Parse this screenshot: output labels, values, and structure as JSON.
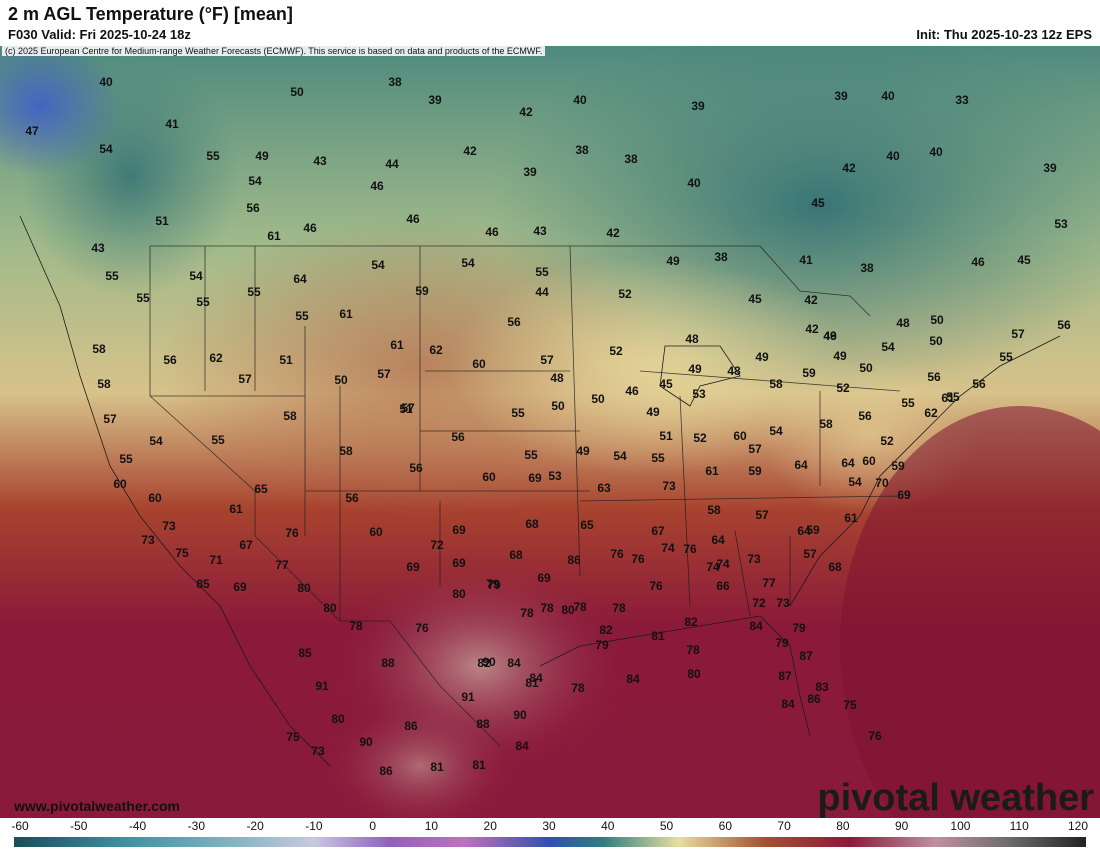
{
  "header": {
    "title": "2 m AGL Temperature (°F) [mean]",
    "valid": "F030 Valid: Fri 2025-10-24 18z",
    "init": "Init: Thu 2025-10-23 12z EPS"
  },
  "map": {
    "copyright": "(c) 2025 European Centre for Medium-range Weather Forecasts (ECMWF). This service is based on data and products of the ECMWF.",
    "site": "www.pivotalweather.com",
    "brand": "pivotal weather",
    "temperature_labels": [
      "40",
      "38",
      "50",
      "39",
      "42",
      "40",
      "39",
      "39",
      "40",
      "33",
      "47",
      "41",
      "54",
      "55",
      "49",
      "43",
      "44",
      "42",
      "39",
      "38",
      "42",
      "40",
      "40",
      "39",
      "54",
      "46",
      "38",
      "40",
      "45",
      "53",
      "56",
      "61",
      "46",
      "46",
      "46",
      "43",
      "42",
      "38",
      "41",
      "38",
      "46",
      "45",
      "51",
      "43",
      "55",
      "54",
      "64",
      "54",
      "54",
      "55",
      "49",
      "44",
      "52",
      "45",
      "42",
      "42",
      "49",
      "55",
      "55",
      "55",
      "61",
      "59",
      "55",
      "56",
      "50",
      "48",
      "50",
      "46",
      "57",
      "56",
      "58",
      "56",
      "62",
      "51",
      "50",
      "57",
      "61",
      "62",
      "60",
      "57",
      "52",
      "48",
      "49",
      "48",
      "49",
      "54",
      "49",
      "50",
      "58",
      "59",
      "58",
      "57",
      "57",
      "55",
      "50",
      "50",
      "46",
      "45",
      "53",
      "52",
      "56",
      "61",
      "56",
      "55",
      "57",
      "58",
      "55",
      "56",
      "51",
      "48",
      "49",
      "51",
      "52",
      "60",
      "54",
      "58",
      "56",
      "55",
      "62",
      "55",
      "54",
      "58",
      "55",
      "54",
      "49",
      "55",
      "57",
      "59",
      "61",
      "64",
      "53",
      "64",
      "60",
      "52",
      "59",
      "55",
      "56",
      "60",
      "69",
      "63",
      "73",
      "58",
      "57",
      "60",
      "65",
      "56",
      "60",
      "61",
      "59",
      "61",
      "69",
      "70",
      "54",
      "60",
      "69",
      "68",
      "65",
      "67",
      "64",
      "64",
      "57",
      "68",
      "73",
      "76",
      "72",
      "73",
      "75",
      "71",
      "67",
      "69",
      "69",
      "68",
      "69",
      "86",
      "76",
      "76",
      "74",
      "76",
      "74",
      "74",
      "73",
      "77",
      "85",
      "69",
      "77",
      "80",
      "79",
      "78",
      "78",
      "78",
      "76",
      "66",
      "73",
      "72",
      "80",
      "79",
      "78",
      "80",
      "78",
      "76",
      "80",
      "82",
      "81",
      "82",
      "84",
      "79",
      "79",
      "78",
      "79",
      "87",
      "85",
      "88",
      "84",
      "84",
      "82",
      "78",
      "84",
      "80",
      "87",
      "91",
      "90",
      "91",
      "81",
      "84",
      "83",
      "80",
      "90",
      "90",
      "86",
      "88",
      "84",
      "75",
      "73",
      "86",
      "81",
      "81",
      "86",
      "75",
      "76"
    ],
    "legend": {
      "ticks": [
        "-60",
        "-50",
        "-40",
        "-30",
        "-20",
        "-10",
        "0",
        "10",
        "20",
        "30",
        "40",
        "50",
        "60",
        "70",
        "80",
        "90",
        "100",
        "110",
        "120"
      ]
    }
  }
}
